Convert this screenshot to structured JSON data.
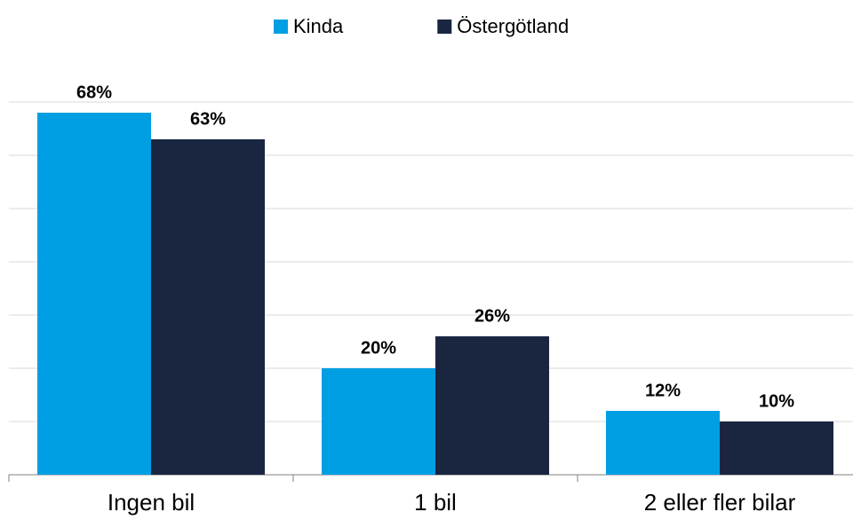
{
  "chart_data": {
    "type": "bar",
    "categories": [
      "Ingen bil",
      "1 bil",
      "2 eller fler bilar"
    ],
    "series": [
      {
        "name": "Kinda",
        "color": "#009fe3",
        "values": [
          68,
          20,
          12
        ],
        "value_labels": [
          "68%",
          "20%",
          "12%"
        ]
      },
      {
        "name": "Östergötland",
        "color": "#1a2640",
        "values": [
          63,
          26,
          10
        ],
        "value_labels": [
          "63%",
          "26%",
          "10%"
        ]
      }
    ],
    "ylim": [
      0,
      70
    ],
    "yticks": [
      0,
      10,
      20,
      30,
      40,
      50,
      60,
      70
    ],
    "grid": true,
    "legend": "top"
  }
}
